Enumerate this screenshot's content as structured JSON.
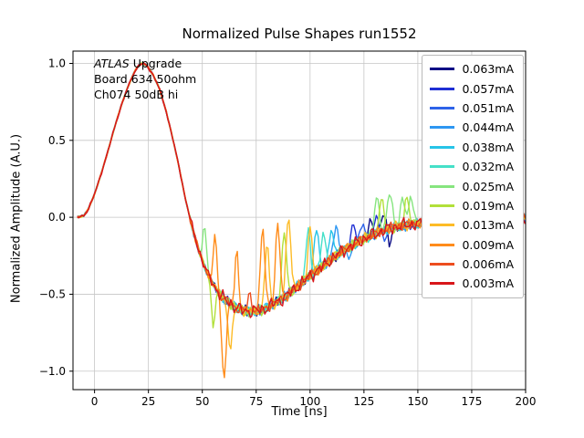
{
  "chart_data": {
    "type": "line",
    "title": "Normalized Pulse Shapes run1552",
    "xlabel": "Time [ns]",
    "ylabel": "Normalized Amplitude (A.U.)",
    "xlim": [
      -10,
      200
    ],
    "ylim": [
      -1.12,
      1.08
    ],
    "xticks": [
      0,
      25,
      50,
      75,
      100,
      125,
      150,
      175,
      200
    ],
    "yticks": [
      -1.0,
      -0.5,
      0.0,
      0.5,
      1.0
    ],
    "grid": true,
    "grid_color": "#c6c6c6",
    "legend_position": "upper right",
    "annotation": {
      "line1_italic": "ATLAS",
      "line1_rest": " Upgrade",
      "line2": "Board 634 50ohm",
      "line3": "Ch074 50dB hi"
    },
    "base_pulse": {
      "x": [
        -8,
        -5,
        -3,
        0,
        3,
        6,
        9,
        12,
        15,
        18,
        20,
        22,
        24,
        27,
        30,
        33,
        36,
        39,
        42,
        45,
        48,
        51,
        54,
        57,
        60,
        63,
        66,
        70,
        74,
        78,
        82,
        86,
        90,
        95,
        100,
        105,
        110,
        115,
        120,
        125,
        130,
        135,
        140,
        145,
        150,
        160,
        170,
        180,
        190,
        200
      ],
      "y": [
        0.0,
        0.01,
        0.05,
        0.15,
        0.28,
        0.42,
        0.57,
        0.71,
        0.83,
        0.93,
        0.98,
        1.0,
        0.99,
        0.93,
        0.84,
        0.7,
        0.53,
        0.34,
        0.13,
        -0.05,
        -0.2,
        -0.32,
        -0.41,
        -0.48,
        -0.53,
        -0.56,
        -0.59,
        -0.61,
        -0.61,
        -0.6,
        -0.57,
        -0.54,
        -0.5,
        -0.44,
        -0.38,
        -0.33,
        -0.27,
        -0.22,
        -0.18,
        -0.14,
        -0.11,
        -0.08,
        -0.06,
        -0.05,
        -0.04,
        -0.03,
        -0.02,
        -0.02,
        -0.01,
        0.0
      ]
    },
    "series": [
      {
        "name": "0.063mA",
        "color": "#0c0c85",
        "spikes": [
          [
            128,
            -0.02,
            1.4
          ],
          [
            134,
            0.03,
            1.6
          ],
          [
            137,
            -0.18,
            1.2
          ]
        ]
      },
      {
        "name": "0.057mA",
        "color": "#1f2fd4",
        "spikes": [
          [
            120,
            -0.05,
            1.4
          ],
          [
            131,
            0.0,
            1.4
          ]
        ]
      },
      {
        "name": "0.051mA",
        "color": "#2e63e8",
        "spikes": [
          [
            124,
            -0.03,
            1.4
          ],
          [
            135,
            -0.15,
            1.3
          ]
        ]
      },
      {
        "name": "0.044mA",
        "color": "#2e97f2",
        "spikes": [
          [
            112,
            -0.05,
            1.4
          ],
          [
            118,
            -0.28,
            1.2
          ]
        ]
      },
      {
        "name": "0.038mA",
        "color": "#27c4e8",
        "spikes": [
          [
            103,
            -0.06,
            1.4
          ],
          [
            110,
            -0.08,
            1.4
          ]
        ]
      },
      {
        "name": "0.032mA",
        "color": "#45e0c8",
        "spikes": [
          [
            93,
            -0.47,
            1.2
          ],
          [
            99,
            -0.08,
            1.4
          ],
          [
            106,
            -0.1,
            1.4
          ]
        ]
      },
      {
        "name": "0.025mA",
        "color": "#86e57f",
        "spikes": [
          [
            51,
            -0.06,
            1.2
          ],
          [
            131,
            0.13,
            1.6
          ],
          [
            137,
            0.16,
            1.6
          ],
          [
            143,
            0.11,
            1.6
          ],
          [
            147,
            0.14,
            1.5
          ]
        ]
      },
      {
        "name": "0.019mA",
        "color": "#b2e03a",
        "spikes": [
          [
            55,
            -0.7,
            1.2
          ],
          [
            88,
            -0.08,
            1.4
          ],
          [
            133,
            0.12,
            1.5
          ],
          [
            145,
            0.13,
            1.5
          ]
        ]
      },
      {
        "name": "0.013mA",
        "color": "#fdbb26",
        "spikes": [
          [
            63,
            -0.87,
            1.3
          ],
          [
            80,
            -0.16,
            1.3
          ],
          [
            90,
            0.01,
            1.5
          ],
          [
            100,
            -0.06,
            1.3
          ]
        ]
      },
      {
        "name": "0.009mA",
        "color": "#ff8c1a",
        "spikes": [
          [
            56,
            -0.12,
            1.2
          ],
          [
            60,
            -1.03,
            1.5
          ],
          [
            66,
            -0.22,
            1.2
          ],
          [
            78,
            -0.07,
            1.4
          ],
          [
            85,
            -0.04,
            1.4
          ]
        ]
      },
      {
        "name": "0.006mA",
        "color": "#ed4d1e",
        "spikes": [
          [
            72,
            -0.5,
            1.3
          ]
        ]
      },
      {
        "name": "0.003mA",
        "color": "#d8161a",
        "spikes": []
      }
    ]
  }
}
